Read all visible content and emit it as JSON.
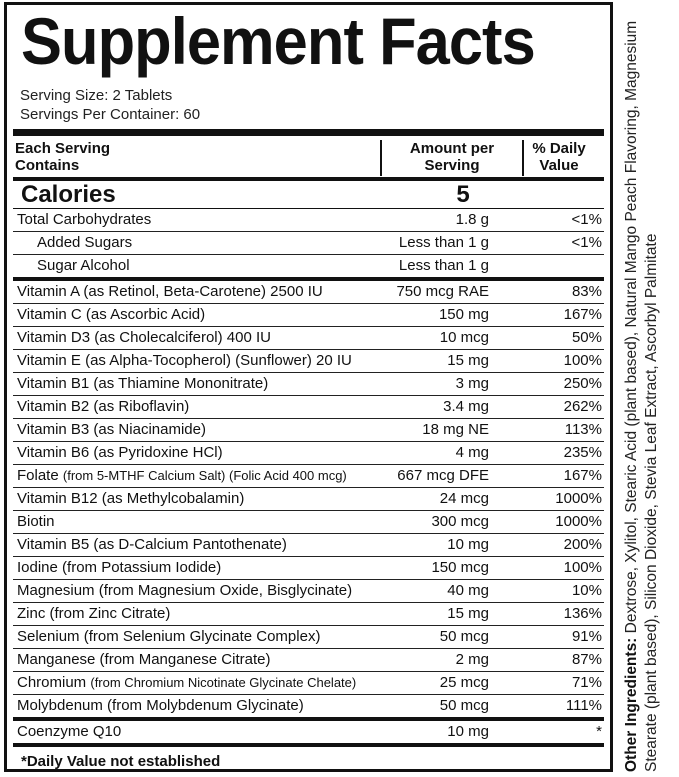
{
  "title": "Supplement Facts",
  "serving_size": "Serving Size: 2 Tablets",
  "servings_per_container": "Servings Per Container: 60",
  "header": {
    "col1": "Each Serving Contains",
    "col2": "Amount per Serving",
    "col3": "% Daily Value"
  },
  "calories": {
    "label": "Calories",
    "value": "5"
  },
  "macros": [
    {
      "name": "Total Carbohydrates",
      "amount": "1.8 g",
      "dv": "<1%"
    },
    {
      "name": "Added Sugars",
      "amount": "Less than 1 g",
      "dv": "<1%"
    },
    {
      "name": "Sugar Alcohol",
      "amount": "Less than 1 g",
      "dv": ""
    }
  ],
  "nutrients": [
    {
      "name": "Vitamin A (as Retinol, Beta-Carotene) 2500 IU",
      "amount": "750 mcg RAE",
      "dv": "83%"
    },
    {
      "name": "Vitamin C (as Ascorbic Acid)",
      "amount": "150 mg",
      "dv": "167%"
    },
    {
      "name": "Vitamin D3 (as Cholecalciferol) 400 IU",
      "amount": "10 mcg",
      "dv": "50%"
    },
    {
      "name": "Vitamin E (as Alpha-Tocopherol) (Sunflower) 20 IU",
      "amount": "15 mg",
      "dv": "100%"
    },
    {
      "name": "Vitamin B1 (as Thiamine Mononitrate)",
      "amount": "3 mg",
      "dv": "250%"
    },
    {
      "name": "Vitamin B2 (as Riboflavin)",
      "amount": "3.4 mg",
      "dv": "262%"
    },
    {
      "name": "Vitamin B3 (as Niacinamide)",
      "amount": "18 mg NE",
      "dv": "113%"
    },
    {
      "name": "Vitamin B6 (as Pyridoxine HCl)",
      "amount": "4 mg",
      "dv": "235%"
    },
    {
      "name": "Folate",
      "source": "(from 5-MTHF Calcium Salt) (Folic Acid 400 mcg)",
      "amount": "667 mcg DFE",
      "dv": "167%"
    },
    {
      "name": "Vitamin B12 (as Methylcobalamin)",
      "amount": "24 mcg",
      "dv": "1000%"
    },
    {
      "name": "Biotin",
      "amount": "300 mcg",
      "dv": "1000%"
    },
    {
      "name": "Vitamin B5 (as D-Calcium Pantothenate)",
      "amount": "10 mg",
      "dv": "200%"
    },
    {
      "name": "Iodine (from Potassium Iodide)",
      "amount": "150 mcg",
      "dv": "100%"
    },
    {
      "name": "Magnesium (from Magnesium Oxide, Bisglycinate)",
      "amount": "40 mg",
      "dv": "10%"
    },
    {
      "name": "Zinc (from Zinc Citrate)",
      "amount": "15 mg",
      "dv": "136%"
    },
    {
      "name": "Selenium (from Selenium Glycinate Complex)",
      "amount": "50 mcg",
      "dv": "91%"
    },
    {
      "name": "Manganese (from Manganese Citrate)",
      "amount": "2 mg",
      "dv": "87%"
    },
    {
      "name": "Chromium",
      "source": "(from Chromium Nicotinate Glycinate Chelate)",
      "amount": "25 mcg",
      "dv": "71%"
    },
    {
      "name": "Molybdenum (from Molybdenum Glycinate)",
      "amount": "50 mcg",
      "dv": "111%"
    },
    {
      "name": "Coenzyme Q10",
      "amount": "10 mg",
      "dv": "*"
    }
  ],
  "footnote": "*Daily Value not established",
  "other_ingredients": {
    "label": "Other Ingredients:",
    "text": "Dextrose, Xylitol, Stearic Acid (plant based), Natural Mango Peach Flavoring, Magnesium Stearate (plant based), Silicon Dioxide, Stevia Leaf Extract, Ascorbyl Palmitate"
  }
}
